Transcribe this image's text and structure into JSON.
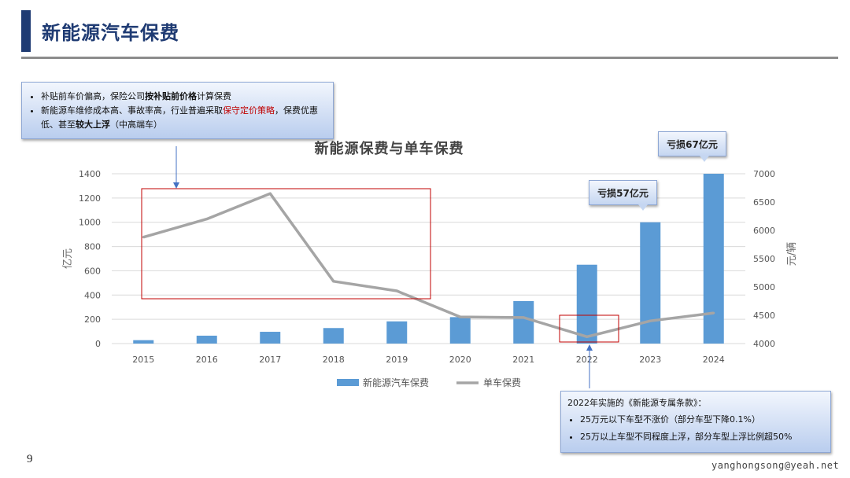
{
  "slide": {
    "title": "新能源汽车保费",
    "page_number": "9",
    "watermark": "yanghongsong@yeah.net"
  },
  "callout_top": {
    "bullet1_pre": "补贴前车价偏高，保险公司",
    "bullet1_bold": "按补贴前价格",
    "bullet1_post": "计算保费",
    "bullet2_pre": "新能源车维修成本高、事故率高，行业普遍采取",
    "bullet2_red": "保守定价策略",
    "bullet2_mid": "，保费优惠低、甚至",
    "bullet2_bold": "较大上浮",
    "bullet2_post": "（中高端车）"
  },
  "callout_bottom": {
    "title": "2022年实施的《新能源专属条款》：",
    "bullet1": "25万元以下车型不涨价（部分车型下降0.1%）",
    "bullet2": "25万以上车型不同程度上浮，部分车型上浮比例超50%"
  },
  "loss_tags": [
    "亏损57亿元",
    "亏损67亿元"
  ],
  "colors": {
    "bar": "#5b9bd5",
    "line": "#a5a5a5",
    "highlight_box": "#c00000",
    "title": "#1f3b73"
  },
  "chart_data": {
    "type": "bar",
    "title": "新能源保费与单车保费",
    "categories": [
      "2015",
      "2016",
      "2017",
      "2018",
      "2019",
      "2020",
      "2021",
      "2022",
      "2023",
      "2024"
    ],
    "series": [
      {
        "name": "新能源汽车保费",
        "type": "bar",
        "axis": "left",
        "values": [
          28,
          65,
          97,
          128,
          183,
          218,
          350,
          650,
          1000,
          1400
        ]
      },
      {
        "name": "单车保费",
        "type": "line",
        "axis": "right",
        "values": [
          5880,
          6200,
          6650,
          5100,
          4930,
          4470,
          4460,
          4120,
          4400,
          4540
        ]
      }
    ],
    "ylabel": "亿元",
    "ylabel_right": "元/辆",
    "ylim": [
      0,
      1400
    ],
    "ylim_right": [
      4000,
      7000
    ],
    "yticks": [
      0,
      200,
      400,
      600,
      800,
      1000,
      1200,
      1400
    ],
    "yticks_right": [
      4000,
      4500,
      5000,
      5500,
      6000,
      6500,
      7000
    ],
    "grid": true,
    "legend_position": "bottom"
  }
}
